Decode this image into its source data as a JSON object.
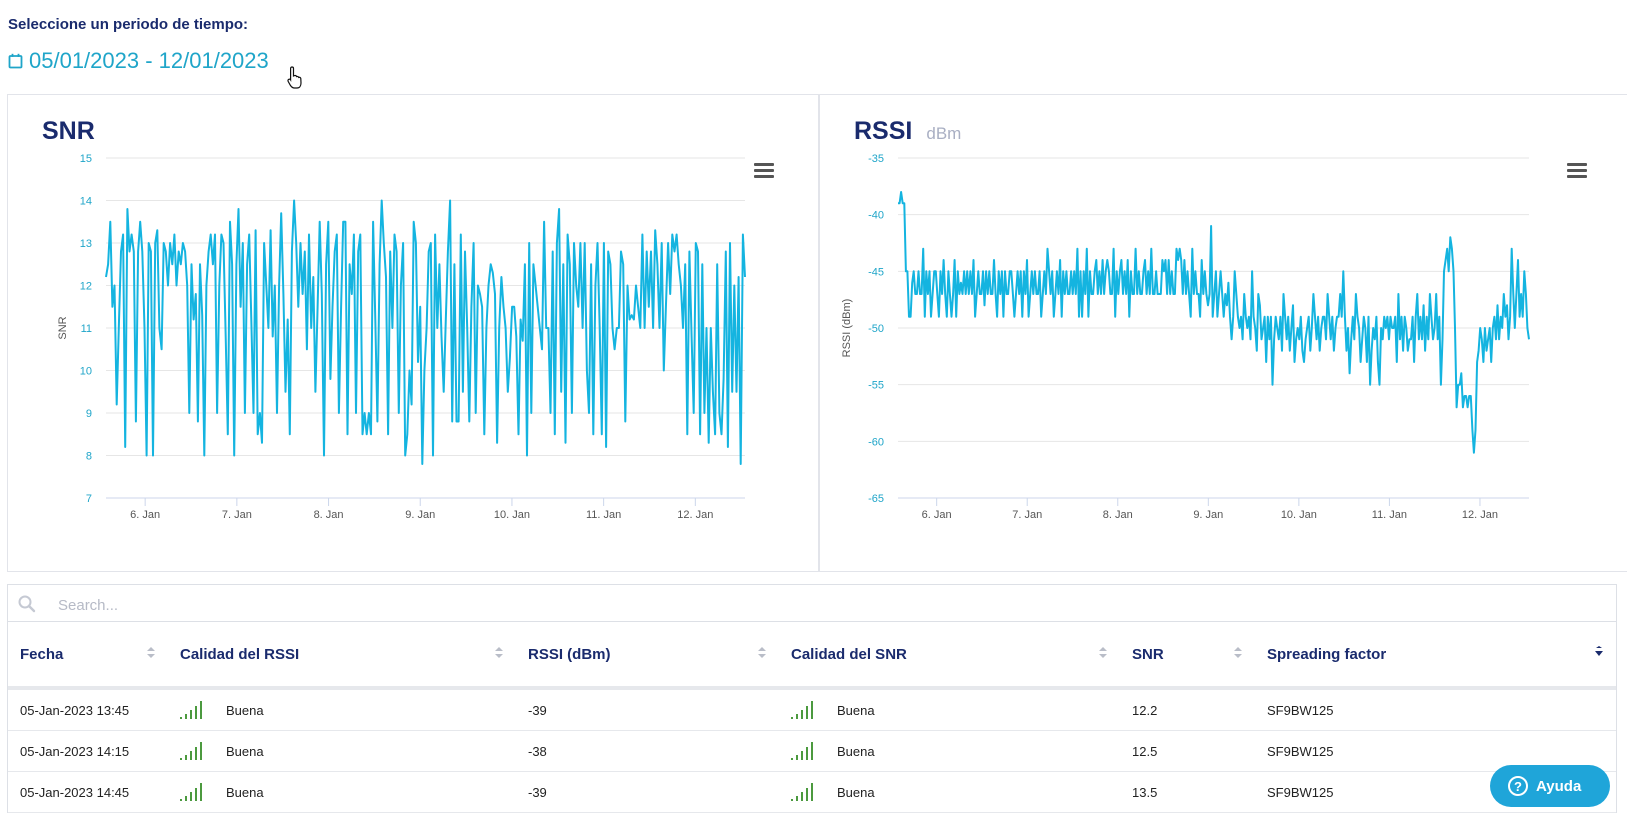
{
  "period": {
    "label": "Seleccione un periodo de tiempo:",
    "range": "05/01/2023 - 12/01/2023"
  },
  "icons": {
    "calendar": "calendar-icon",
    "menu": "hamburger-menu-icon",
    "search": "search-icon",
    "signal": "signal-bars-icon",
    "sort": "sort-arrows-icon",
    "help": "question-circle-icon"
  },
  "colors": {
    "accent": "#1fa5c9",
    "title": "#1a2b6d",
    "line": "#14b4e0",
    "signal_good": "#4c9a3f"
  },
  "chart_data": [
    {
      "type": "line",
      "title": "SNR",
      "ylabel": "SNR",
      "xlabel": "",
      "ylim": [
        7,
        15
      ],
      "yticks": [
        "15",
        "14",
        "13",
        "12",
        "11",
        "10",
        "9",
        "8",
        "7"
      ],
      "xtick_labels": [
        "6. Jan",
        "7. Jan",
        "8. Jan",
        "9. Jan",
        "10. Jan",
        "11. Jan",
        "12. Jan"
      ],
      "x_range": [
        "2023-01-05 13:45",
        "2023-01-12 13:00"
      ],
      "grid": true,
      "series": [
        {
          "values": [
            12.2,
            12.5,
            13.5,
            11.5,
            12,
            9.2,
            11,
            12.8,
            13.2,
            8.2,
            13.8,
            12.8,
            13.2,
            12.8,
            8.8,
            12.8,
            13.5,
            12.8,
            11,
            8,
            13,
            12.8,
            8,
            13,
            13.3,
            11,
            10.5,
            13,
            12.8,
            12,
            13,
            12.5,
            13.2,
            12,
            12.8,
            12.5,
            13,
            12.8,
            12,
            9,
            12.5,
            11.2,
            11.8,
            8.8,
            12.5,
            11.3,
            8,
            12,
            12.8,
            13.2,
            12.5,
            13.2,
            9,
            12,
            13.2,
            13,
            10.8,
            8.5,
            13.5,
            12.5,
            8,
            12.5,
            13.8,
            11.5,
            13,
            9,
            12.5,
            13.2,
            11.2,
            9,
            13.3,
            8.5,
            9,
            8.3,
            13,
            12,
            11,
            13.3,
            10.8,
            12,
            9,
            12,
            13.7,
            11.8,
            9.5,
            11.2,
            8.5,
            12.8,
            14,
            13,
            11.5,
            13,
            11.8,
            12.8,
            10.5,
            13.2,
            11,
            12.2,
            9.5,
            11.5,
            13.5,
            11.8,
            8,
            12.5,
            13.5,
            9.8,
            11.5,
            12.8,
            13.2,
            9,
            11.5,
            13.5,
            13.5,
            8.5,
            12.5,
            11.8,
            13.2,
            9,
            12.8,
            13.2,
            8.5,
            9,
            8.5,
            9,
            8.5,
            13.5,
            11.2,
            8.8,
            12.5,
            14,
            13,
            12.2,
            8.5,
            12.8,
            11,
            13.2,
            12.8,
            9,
            12,
            13,
            8,
            8.5,
            10,
            9.2,
            13.5,
            13,
            10.2,
            11.5,
            7.8,
            10,
            11,
            12.8,
            13,
            8,
            13.2,
            11,
            12.5,
            10.8,
            9.5,
            11.2,
            12.8,
            14,
            8.8,
            12.5,
            8.8,
            8.8,
            13.2,
            9.5,
            12.8,
            11,
            8.8,
            11.5,
            13,
            9,
            12,
            11.8,
            11.5,
            8.5,
            11,
            12,
            12.5,
            12.3,
            11.8,
            8.3,
            11,
            12.2,
            11.5,
            11,
            9.5,
            10.3,
            11.5,
            11.5,
            10.8,
            8.5,
            11.2,
            10.7,
            12.5,
            8,
            13,
            9,
            12.5,
            12,
            11.5,
            11,
            10.5,
            13.5,
            11,
            11,
            9,
            12.8,
            8.5,
            13,
            13.8,
            9.5,
            12.5,
            8.3,
            13.2,
            12.5,
            9,
            13,
            12,
            11.5,
            13,
            11,
            13,
            10,
            9,
            12.5,
            8.5,
            12,
            13,
            11,
            8.5,
            13,
            8.2,
            12.8,
            12.5,
            11,
            10.5,
            11,
            11,
            12.8,
            12.5,
            8.8,
            12,
            11.2,
            11.3,
            11.2,
            12,
            11.5,
            11,
            13.2,
            11,
            12.8,
            11.5,
            12.8,
            11,
            13.3,
            12.5,
            11,
            13,
            10,
            11.5,
            13,
            11.8,
            13.2,
            12.8,
            13.2,
            12.5,
            12,
            11,
            12.5,
            8.5,
            12.8,
            10.8,
            9,
            13,
            12.8,
            8.5,
            12.5,
            9,
            11,
            8.3,
            11,
            9.5,
            8.5,
            12.5,
            9,
            8.5,
            9.8,
            12.8,
            8.2,
            13,
            9.5,
            12,
            9.5,
            12.2,
            7.8,
            13.2,
            12.2
          ]
        }
      ]
    },
    {
      "type": "line",
      "title": "RSSI",
      "subtitle": "dBm",
      "ylabel": "RSSI (dBm)",
      "xlabel": "",
      "ylim": [
        -65,
        -35
      ],
      "yticks": [
        "-35",
        "-40",
        "-45",
        "-50",
        "-55",
        "-60",
        "-65"
      ],
      "xtick_labels": [
        "6. Jan",
        "7. Jan",
        "8. Jan",
        "9. Jan",
        "10. Jan",
        "11. Jan",
        "12. Jan"
      ],
      "x_range": [
        "2023-01-05 13:45",
        "2023-01-12 13:00"
      ],
      "grid": true,
      "series": [
        {
          "values": [
            -39,
            -39,
            -38,
            -39,
            -39,
            -45,
            -45,
            -49,
            -49,
            -46,
            -45,
            -47,
            -47,
            -45,
            -47,
            -47,
            -43,
            -49,
            -45,
            -47,
            -45,
            -49,
            -47,
            -45,
            -45,
            -47,
            -49,
            -45,
            -47,
            -44,
            -47,
            -49,
            -45,
            -47,
            -49,
            -47,
            -44,
            -49,
            -45,
            -47,
            -46,
            -47,
            -45,
            -47,
            -45,
            -47,
            -45,
            -47,
            -44,
            -49,
            -47,
            -45,
            -47,
            -47,
            -45,
            -48,
            -45,
            -47,
            -45,
            -47,
            -47,
            -44,
            -47,
            -49,
            -45,
            -47,
            -45,
            -49,
            -45,
            -47,
            -47,
            -45,
            -45,
            -47,
            -49,
            -47,
            -45,
            -47,
            -45,
            -49,
            -45,
            -47,
            -44,
            -49,
            -47,
            -45,
            -47,
            -45,
            -47,
            -47,
            -45,
            -49,
            -47,
            -45,
            -47,
            -43,
            -45,
            -47,
            -45,
            -49,
            -47,
            -45,
            -47,
            -44,
            -49,
            -45,
            -47,
            -45,
            -47,
            -47,
            -45,
            -47,
            -45,
            -47,
            -43,
            -49,
            -45,
            -49,
            -45,
            -47,
            -43,
            -49,
            -45,
            -47,
            -47,
            -45,
            -44,
            -47,
            -45,
            -47,
            -44,
            -47,
            -45,
            -44,
            -45,
            -47,
            -47,
            -43,
            -49,
            -45,
            -47,
            -45,
            -44,
            -47,
            -45,
            -47,
            -44,
            -49,
            -45,
            -47,
            -47,
            -43,
            -47,
            -45,
            -47,
            -47,
            -45,
            -44,
            -47,
            -45,
            -47,
            -43,
            -47,
            -47,
            -45,
            -47,
            -47,
            -47,
            -44,
            -45,
            -44,
            -47,
            -44,
            -47,
            -45,
            -47,
            -47,
            -43,
            -44,
            -43,
            -44,
            -47,
            -44,
            -47,
            -45,
            -47,
            -49,
            -43,
            -47,
            -45,
            -47,
            -47,
            -49,
            -44,
            -47,
            -45,
            -47,
            -48,
            -47,
            -41,
            -49,
            -47,
            -45,
            -49,
            -47,
            -45,
            -47,
            -49,
            -47,
            -48,
            -46,
            -49,
            -51,
            -49,
            -45,
            -47,
            -49,
            -50,
            -49,
            -51,
            -47,
            -49,
            -50,
            -49,
            -51,
            -45,
            -49,
            -50,
            -52,
            -47,
            -48,
            -51,
            -50,
            -49,
            -53,
            -49,
            -51,
            -49,
            -55,
            -51,
            -49,
            -50,
            -51,
            -49,
            -52,
            -47,
            -49,
            -51,
            -49,
            -52,
            -50,
            -48,
            -53,
            -51,
            -50,
            -51,
            -49,
            -52,
            -53,
            -51,
            -50,
            -49,
            -52,
            -50,
            -47,
            -49,
            -51,
            -49,
            -52,
            -50,
            -49,
            -49,
            -51,
            -47,
            -49,
            -51,
            -49,
            -52,
            -50,
            -49,
            -49,
            -47,
            -49,
            -45,
            -49,
            -52,
            -50,
            -54,
            -51,
            -49,
            -51,
            -47,
            -49,
            -50,
            -53,
            -51,
            -49,
            -50,
            -53,
            -49,
            -55,
            -52,
            -50,
            -51,
            -49,
            -53,
            -55,
            -50,
            -51,
            -49,
            -50,
            -49,
            -51,
            -49,
            -50,
            -50,
            -49,
            -53,
            -47,
            -51,
            -49,
            -52,
            -49,
            -50,
            -52,
            -51,
            -51,
            -49,
            -53,
            -49,
            -47,
            -51,
            -49,
            -51,
            -48,
            -52,
            -49,
            -51,
            -47,
            -49,
            -51,
            -50,
            -47,
            -51,
            -49,
            -55,
            -51,
            -45,
            -44,
            -43,
            -45,
            -42,
            -43,
            -45,
            -50,
            -57,
            -55,
            -55,
            -54,
            -57,
            -56,
            -56,
            -57,
            -56,
            -56,
            -59,
            -61,
            -59,
            -53,
            -52,
            -50,
            -51,
            -53,
            -50,
            -52,
            -51,
            -50,
            -53,
            -50,
            -49,
            -51,
            -48,
            -51,
            -49,
            -50,
            -47,
            -49,
            -48,
            -51,
            -49,
            -43,
            -47,
            -50,
            -47,
            -44,
            -49,
            -47,
            -49,
            -45,
            -47,
            -50,
            -51
          ]
        }
      ]
    }
  ],
  "search": {
    "placeholder": "Search..."
  },
  "table": {
    "columns": [
      "Fecha",
      "Calidad del RSSI",
      "RSSI (dBm)",
      "Calidad del SNR",
      "SNR",
      "Spreading factor"
    ],
    "rows": [
      {
        "fecha": "05-Jan-2023 13:45",
        "rssi_quality": "Buena",
        "rssi": "-39",
        "snr_quality": "Buena",
        "snr": "12.2",
        "sf": "SF9BW125"
      },
      {
        "fecha": "05-Jan-2023 14:15",
        "rssi_quality": "Buena",
        "rssi": "-38",
        "snr_quality": "Buena",
        "snr": "12.5",
        "sf": "SF9BW125"
      },
      {
        "fecha": "05-Jan-2023 14:45",
        "rssi_quality": "Buena",
        "rssi": "-39",
        "snr_quality": "Buena",
        "snr": "13.5",
        "sf": "SF9BW125"
      }
    ]
  },
  "help": {
    "label": "Ayuda"
  }
}
